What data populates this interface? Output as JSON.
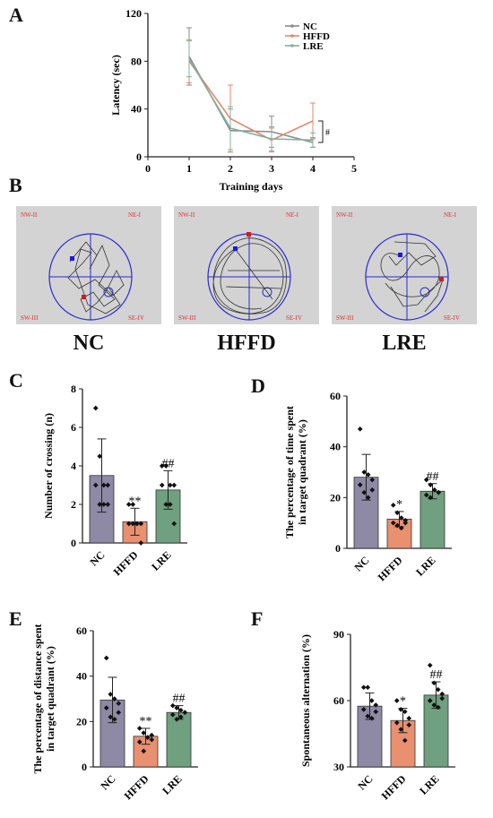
{
  "panels": [
    "A",
    "B",
    "C",
    "D",
    "E",
    "F"
  ],
  "colors": {
    "NC": "#8e89a5",
    "HFFD": "#e8906f",
    "LRE": "#6fa07f",
    "lineNC": "#8a8a8a",
    "lineHFFD": "#e4876a",
    "lineLRE": "#7fb0a0",
    "axis": "#222222"
  },
  "maze": {
    "quadrants": [
      "NW-II",
      "NE-I",
      "SW-III",
      "SE-IV"
    ],
    "captions": [
      "NC",
      "HFFD",
      "LRE"
    ]
  },
  "chart_data": [
    {
      "type": "line",
      "panel": "A",
      "xlabel": "Training days",
      "ylabel": "Latency (sec)",
      "xlim": [
        0,
        5
      ],
      "ylim": [
        0,
        120
      ],
      "xticks": [
        "0",
        "1",
        "2",
        "3",
        "4",
        "5"
      ],
      "yticks": [
        "0",
        "40",
        "80",
        "120"
      ],
      "x": [
        1,
        2,
        3,
        4
      ],
      "legend_position": "top-right",
      "significance": "#",
      "series": [
        {
          "name": "NC",
          "values": [
            84,
            22,
            21,
            12
          ],
          "err": [
            24,
            18,
            13,
            4
          ]
        },
        {
          "name": "HFFD",
          "values": [
            80,
            32,
            14,
            30
          ],
          "err": [
            18,
            28,
            10,
            15
          ]
        },
        {
          "name": "LRE",
          "values": [
            82,
            24,
            15,
            14
          ],
          "err": [
            15,
            18,
            10,
            6
          ]
        }
      ]
    },
    {
      "type": "bar",
      "panel": "C",
      "ylabel": "Number of crossing (n)",
      "ylim": [
        0,
        8
      ],
      "yticks": [
        "0",
        "2",
        "4",
        "6",
        "8"
      ],
      "categories": [
        "NC",
        "HFFD",
        "LRE"
      ],
      "values": [
        3.5,
        1.1,
        2.75
      ],
      "err": [
        1.9,
        0.7,
        1.0
      ],
      "annotations": [
        "",
        "**",
        "##"
      ],
      "points": [
        [
          7,
          4.5,
          3,
          3,
          3,
          2,
          2,
          2
        ],
        [
          2,
          2,
          1,
          1,
          1,
          1,
          1,
          0
        ],
        [
          4,
          4,
          3,
          3,
          3,
          2,
          2,
          1
        ]
      ]
    },
    {
      "type": "bar",
      "panel": "D",
      "ylabel": "The percentage of time spent\nin target quadrant (%)",
      "ylim": [
        0,
        60
      ],
      "yticks": [
        "0",
        "20",
        "40",
        "60"
      ],
      "categories": [
        "NC",
        "HFFD",
        "LRE"
      ],
      "values": [
        28,
        11.5,
        22.5
      ],
      "err": [
        9,
        3,
        3
      ],
      "annotations": [
        "",
        "*",
        "##"
      ],
      "points": [
        [
          47,
          30,
          29,
          27,
          25,
          22,
          20,
          23
        ],
        [
          17,
          14,
          12,
          11,
          10,
          9,
          8,
          10
        ],
        [
          27,
          25,
          23,
          22,
          21,
          20,
          23,
          22
        ]
      ]
    },
    {
      "type": "bar",
      "panel": "E",
      "ylabel": "The percentage of distance spent\nin target quadrant (%)",
      "ylim": [
        0,
        60
      ],
      "yticks": [
        "0",
        "20",
        "40",
        "60"
      ],
      "categories": [
        "NC",
        "HFFD",
        "LRE"
      ],
      "values": [
        29.5,
        13.5,
        24
      ],
      "err": [
        10,
        3.5,
        3
      ],
      "annotations": [
        "",
        "**",
        "##"
      ],
      "points": [
        [
          48,
          32,
          30,
          28,
          26,
          22,
          21,
          24
        ],
        [
          17,
          15,
          13,
          12,
          11,
          7,
          13,
          14
        ],
        [
          27,
          26,
          25,
          24,
          23,
          21,
          22,
          24
        ]
      ]
    },
    {
      "type": "bar",
      "panel": "F",
      "ylabel": "Spontaneous alternation (%)",
      "ylim": [
        30,
        90
      ],
      "yticks": [
        "30",
        "60",
        "90"
      ],
      "categories": [
        "NC",
        "HFFD",
        "LRE"
      ],
      "values": [
        57.5,
        51,
        62.5
      ],
      "err": [
        6,
        5.5,
        6
      ],
      "annotations": [
        "",
        "*",
        "##"
      ],
      "points": [
        [
          66,
          66,
          60,
          58,
          56,
          53,
          52,
          55
        ],
        [
          60,
          56,
          55,
          52,
          50,
          47,
          42,
          49
        ],
        [
          76,
          68,
          65,
          63,
          60,
          58,
          57,
          61
        ]
      ]
    }
  ]
}
